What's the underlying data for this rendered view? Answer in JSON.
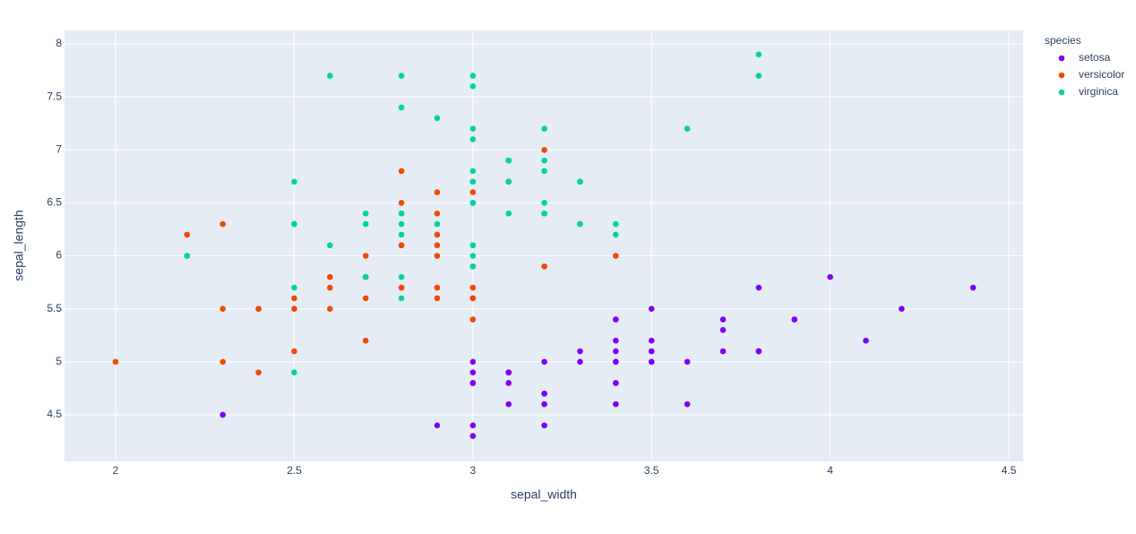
{
  "chart_data": {
    "type": "scatter",
    "x_label": "sepal_width",
    "y_label": "sepal_length",
    "legend_title": "species",
    "legend_position": "right",
    "grid": true,
    "xlim": [
      1.857,
      4.54
    ],
    "ylim": [
      4.06,
      8.127
    ],
    "xticks": [
      2,
      2.5,
      3,
      3.5,
      4,
      4.5
    ],
    "yticks": [
      4.5,
      5,
      5.5,
      6,
      6.5,
      7,
      7.5,
      8
    ],
    "series": [
      {
        "name": "setosa",
        "color": "#7e00f5",
        "x": [
          3.5,
          3.0,
          3.2,
          3.1,
          3.6,
          3.9,
          3.4,
          3.4,
          2.9,
          3.1,
          3.7,
          3.4,
          3.0,
          3.0,
          4.0,
          4.4,
          3.9,
          3.5,
          3.8,
          3.8,
          3.4,
          3.7,
          3.6,
          3.3,
          3.4,
          3.0,
          3.4,
          3.5,
          3.4,
          3.2,
          3.1,
          3.4,
          4.1,
          4.2,
          3.1,
          3.2,
          3.5,
          3.1,
          3.0,
          3.4,
          3.5,
          2.3,
          3.2,
          3.5,
          3.8,
          3.0,
          3.8,
          3.2,
          3.7,
          3.3
        ],
        "values": [
          5.1,
          4.9,
          4.7,
          4.6,
          5.0,
          5.4,
          4.6,
          5.0,
          4.4,
          4.9,
          5.4,
          4.8,
          4.8,
          4.3,
          5.8,
          5.7,
          5.4,
          5.1,
          5.7,
          5.1,
          5.4,
          5.1,
          4.6,
          5.1,
          4.8,
          5.0,
          5.0,
          5.2,
          5.2,
          4.7,
          4.8,
          5.4,
          5.2,
          5.5,
          4.9,
          5.0,
          5.5,
          4.9,
          4.4,
          5.1,
          5.0,
          4.5,
          4.4,
          5.0,
          5.1,
          4.8,
          5.1,
          4.6,
          5.3,
          5.0
        ]
      },
      {
        "name": "versicolor",
        "color": "#f04a00",
        "x": [
          3.2,
          3.2,
          3.1,
          2.3,
          2.8,
          2.8,
          3.3,
          2.4,
          2.9,
          2.7,
          2.0,
          3.0,
          2.2,
          2.9,
          2.9,
          3.1,
          3.0,
          2.7,
          2.2,
          2.5,
          3.2,
          2.8,
          2.5,
          2.8,
          2.9,
          3.0,
          2.8,
          3.0,
          2.9,
          2.6,
          2.4,
          2.4,
          2.7,
          2.7,
          3.0,
          3.4,
          3.1,
          2.3,
          3.0,
          2.5,
          2.6,
          3.0,
          2.6,
          2.3,
          2.7,
          3.0,
          2.9,
          2.9,
          2.5,
          2.8
        ],
        "values": [
          7.0,
          6.4,
          6.9,
          5.5,
          6.5,
          5.7,
          6.3,
          4.9,
          6.6,
          5.2,
          5.0,
          5.9,
          6.0,
          6.1,
          5.6,
          6.7,
          5.6,
          5.8,
          6.2,
          5.6,
          5.9,
          6.1,
          6.3,
          6.1,
          6.4,
          6.6,
          6.8,
          6.7,
          6.0,
          5.7,
          5.5,
          5.5,
          5.8,
          6.0,
          5.4,
          6.0,
          6.7,
          6.3,
          5.6,
          5.5,
          5.5,
          6.1,
          5.8,
          5.0,
          5.6,
          5.7,
          5.7,
          6.2,
          5.1,
          5.7
        ]
      },
      {
        "name": "virginica",
        "color": "#00d49b",
        "x": [
          3.3,
          2.7,
          3.0,
          2.9,
          3.0,
          3.0,
          2.5,
          2.9,
          2.5,
          3.6,
          3.2,
          2.7,
          3.0,
          2.5,
          2.8,
          3.2,
          3.0,
          3.8,
          2.6,
          2.2,
          3.2,
          2.8,
          2.8,
          2.7,
          3.3,
          3.2,
          2.8,
          3.0,
          2.8,
          3.0,
          2.8,
          3.8,
          2.8,
          2.8,
          2.6,
          3.0,
          3.4,
          3.1,
          3.0,
          3.1,
          3.1,
          3.1,
          2.7,
          3.2,
          3.3,
          3.0,
          2.5,
          3.0,
          3.4,
          3.0
        ],
        "values": [
          6.3,
          5.8,
          7.1,
          6.3,
          6.5,
          7.6,
          4.9,
          7.3,
          6.7,
          7.2,
          6.5,
          6.4,
          6.8,
          5.7,
          5.8,
          6.4,
          6.5,
          7.7,
          7.7,
          6.0,
          6.9,
          5.6,
          7.7,
          6.3,
          6.7,
          7.2,
          6.2,
          6.1,
          6.4,
          7.2,
          7.4,
          7.9,
          6.4,
          6.3,
          6.1,
          7.7,
          6.3,
          6.4,
          6.0,
          6.9,
          6.7,
          6.9,
          5.8,
          6.8,
          6.7,
          6.7,
          6.3,
          6.5,
          6.2,
          5.9
        ]
      }
    ]
  }
}
